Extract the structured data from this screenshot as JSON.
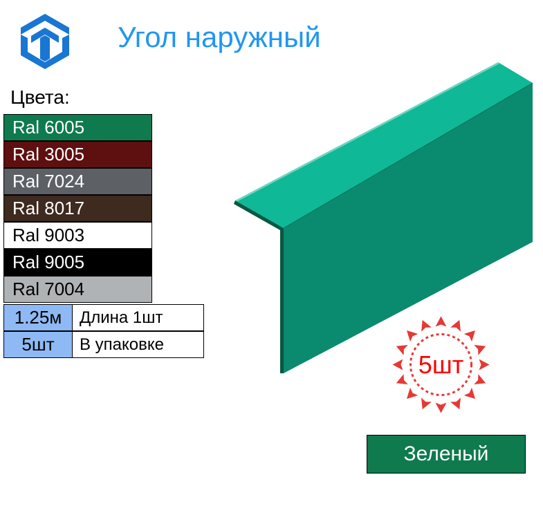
{
  "title": "Угол наружный",
  "colors_label": "Цвета:",
  "color_swatches": [
    {
      "code": "Ral 6005",
      "bg": "#0e7a4e",
      "text": "#ffffff"
    },
    {
      "code": "Ral 3005",
      "bg": "#5e0f0f",
      "text": "#ffffff"
    },
    {
      "code": "Ral 7024",
      "bg": "#5d6166",
      "text": "#ffffff"
    },
    {
      "code": "Ral 8017",
      "bg": "#3e2a1e",
      "text": "#ffffff"
    },
    {
      "code": "Ral 9003",
      "bg": "#ffffff",
      "text": "#000000"
    },
    {
      "code": "Ral 9005",
      "bg": "#000000",
      "text": "#ffffff"
    },
    {
      "code": "Ral 7004",
      "bg": "#b0b3b5",
      "text": "#000000"
    }
  ],
  "specs": [
    {
      "value": "1.25м",
      "label": "Длина 1шт"
    },
    {
      "value": "5шт",
      "label": "В упаковке"
    }
  ],
  "qty_badge": "5шт",
  "color_name": "Зеленый",
  "product_colors": {
    "top_surface": "#0fb896",
    "side_surface": "#0a8a6f",
    "shadow": "#065940"
  },
  "logo_color": "#1976d2",
  "badge_colors": {
    "outer": "#e53935",
    "inner": "#ffffff",
    "dots": "#e53935"
  }
}
